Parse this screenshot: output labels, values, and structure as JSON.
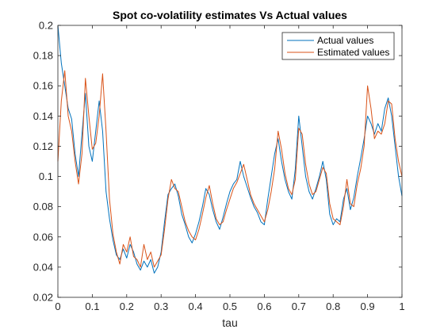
{
  "chart_data": {
    "type": "line",
    "title": "Spot co-volatility estimates Vs Actual values",
    "xlabel": "tau",
    "ylabel": "",
    "xlim": [
      0,
      1
    ],
    "ylim": [
      0.02,
      0.2
    ],
    "xticks": [
      0,
      0.1,
      0.2,
      0.3,
      0.4,
      0.5,
      0.6,
      0.7,
      0.8,
      0.9,
      1
    ],
    "xtick_labels": [
      "0",
      "0.1",
      "0.2",
      "0.3",
      "0.4",
      "0.5",
      "0.6",
      "0.7",
      "0.8",
      "0.9",
      "1"
    ],
    "yticks": [
      0.02,
      0.04,
      0.06,
      0.08,
      0.1,
      0.12,
      0.14,
      0.16,
      0.18,
      0.2
    ],
    "ytick_labels": [
      "0.02",
      "0.04",
      "0.06",
      "0.08",
      "0.1",
      "0.12",
      "0.14",
      "0.16",
      "0.18",
      "0.2"
    ],
    "grid": false,
    "legend_position": "top-right",
    "series": [
      {
        "name": "Actual values",
        "color": "#0072BD",
        "points": [
          [
            0.0,
            0.2
          ],
          [
            0.01,
            0.175
          ],
          [
            0.02,
            0.16
          ],
          [
            0.03,
            0.145
          ],
          [
            0.04,
            0.138
          ],
          [
            0.05,
            0.115
          ],
          [
            0.06,
            0.1
          ],
          [
            0.07,
            0.128
          ],
          [
            0.08,
            0.155
          ],
          [
            0.09,
            0.12
          ],
          [
            0.1,
            0.11
          ],
          [
            0.11,
            0.13
          ],
          [
            0.12,
            0.15
          ],
          [
            0.13,
            0.13
          ],
          [
            0.14,
            0.09
          ],
          [
            0.15,
            0.072
          ],
          [
            0.16,
            0.058
          ],
          [
            0.17,
            0.048
          ],
          [
            0.18,
            0.045
          ],
          [
            0.19,
            0.052
          ],
          [
            0.2,
            0.046
          ],
          [
            0.21,
            0.055
          ],
          [
            0.22,
            0.05
          ],
          [
            0.23,
            0.042
          ],
          [
            0.24,
            0.038
          ],
          [
            0.25,
            0.044
          ],
          [
            0.26,
            0.04
          ],
          [
            0.27,
            0.045
          ],
          [
            0.28,
            0.036
          ],
          [
            0.29,
            0.04
          ],
          [
            0.3,
            0.05
          ],
          [
            0.31,
            0.07
          ],
          [
            0.32,
            0.088
          ],
          [
            0.33,
            0.092
          ],
          [
            0.34,
            0.095
          ],
          [
            0.35,
            0.087
          ],
          [
            0.36,
            0.075
          ],
          [
            0.37,
            0.068
          ],
          [
            0.38,
            0.06
          ],
          [
            0.39,
            0.056
          ],
          [
            0.4,
            0.062
          ],
          [
            0.41,
            0.07
          ],
          [
            0.42,
            0.08
          ],
          [
            0.43,
            0.092
          ],
          [
            0.44,
            0.088
          ],
          [
            0.45,
            0.078
          ],
          [
            0.46,
            0.07
          ],
          [
            0.47,
            0.065
          ],
          [
            0.48,
            0.073
          ],
          [
            0.49,
            0.082
          ],
          [
            0.5,
            0.09
          ],
          [
            0.51,
            0.095
          ],
          [
            0.52,
            0.098
          ],
          [
            0.53,
            0.11
          ],
          [
            0.54,
            0.1
          ],
          [
            0.55,
            0.093
          ],
          [
            0.56,
            0.086
          ],
          [
            0.57,
            0.08
          ],
          [
            0.58,
            0.076
          ],
          [
            0.59,
            0.07
          ],
          [
            0.6,
            0.068
          ],
          [
            0.61,
            0.085
          ],
          [
            0.62,
            0.1
          ],
          [
            0.63,
            0.115
          ],
          [
            0.64,
            0.125
          ],
          [
            0.65,
            0.11
          ],
          [
            0.66,
            0.098
          ],
          [
            0.67,
            0.09
          ],
          [
            0.68,
            0.085
          ],
          [
            0.69,
            0.105
          ],
          [
            0.7,
            0.14
          ],
          [
            0.71,
            0.12
          ],
          [
            0.72,
            0.1
          ],
          [
            0.73,
            0.09
          ],
          [
            0.74,
            0.085
          ],
          [
            0.75,
            0.092
          ],
          [
            0.76,
            0.1
          ],
          [
            0.77,
            0.11
          ],
          [
            0.78,
            0.098
          ],
          [
            0.79,
            0.075
          ],
          [
            0.8,
            0.068
          ],
          [
            0.81,
            0.072
          ],
          [
            0.82,
            0.07
          ],
          [
            0.83,
            0.085
          ],
          [
            0.84,
            0.092
          ],
          [
            0.85,
            0.078
          ],
          [
            0.86,
            0.086
          ],
          [
            0.87,
            0.1
          ],
          [
            0.88,
            0.112
          ],
          [
            0.89,
            0.125
          ],
          [
            0.9,
            0.14
          ],
          [
            0.91,
            0.135
          ],
          [
            0.92,
            0.128
          ],
          [
            0.93,
            0.135
          ],
          [
            0.94,
            0.13
          ],
          [
            0.95,
            0.145
          ],
          [
            0.96,
            0.152
          ],
          [
            0.97,
            0.14
          ],
          [
            0.98,
            0.12
          ],
          [
            0.99,
            0.1
          ],
          [
            1.0,
            0.087
          ]
        ]
      },
      {
        "name": "Estimated values",
        "color": "#D95319",
        "points": [
          [
            0.0,
            0.11
          ],
          [
            0.01,
            0.15
          ],
          [
            0.02,
            0.17
          ],
          [
            0.03,
            0.14
          ],
          [
            0.04,
            0.13
          ],
          [
            0.05,
            0.11
          ],
          [
            0.06,
            0.095
          ],
          [
            0.07,
            0.115
          ],
          [
            0.08,
            0.165
          ],
          [
            0.09,
            0.14
          ],
          [
            0.1,
            0.118
          ],
          [
            0.11,
            0.122
          ],
          [
            0.12,
            0.14
          ],
          [
            0.13,
            0.168
          ],
          [
            0.14,
            0.13
          ],
          [
            0.15,
            0.085
          ],
          [
            0.16,
            0.062
          ],
          [
            0.17,
            0.05
          ],
          [
            0.18,
            0.042
          ],
          [
            0.19,
            0.055
          ],
          [
            0.2,
            0.05
          ],
          [
            0.21,
            0.06
          ],
          [
            0.22,
            0.047
          ],
          [
            0.23,
            0.045
          ],
          [
            0.24,
            0.04
          ],
          [
            0.25,
            0.055
          ],
          [
            0.26,
            0.045
          ],
          [
            0.27,
            0.05
          ],
          [
            0.28,
            0.04
          ],
          [
            0.29,
            0.044
          ],
          [
            0.3,
            0.048
          ],
          [
            0.31,
            0.065
          ],
          [
            0.32,
            0.085
          ],
          [
            0.33,
            0.098
          ],
          [
            0.34,
            0.092
          ],
          [
            0.35,
            0.09
          ],
          [
            0.36,
            0.08
          ],
          [
            0.37,
            0.07
          ],
          [
            0.38,
            0.064
          ],
          [
            0.39,
            0.06
          ],
          [
            0.4,
            0.058
          ],
          [
            0.41,
            0.065
          ],
          [
            0.42,
            0.075
          ],
          [
            0.43,
            0.086
          ],
          [
            0.44,
            0.094
          ],
          [
            0.45,
            0.082
          ],
          [
            0.46,
            0.072
          ],
          [
            0.47,
            0.068
          ],
          [
            0.48,
            0.07
          ],
          [
            0.49,
            0.078
          ],
          [
            0.5,
            0.085
          ],
          [
            0.51,
            0.092
          ],
          [
            0.52,
            0.096
          ],
          [
            0.53,
            0.102
          ],
          [
            0.54,
            0.108
          ],
          [
            0.55,
            0.098
          ],
          [
            0.56,
            0.088
          ],
          [
            0.57,
            0.082
          ],
          [
            0.58,
            0.078
          ],
          [
            0.59,
            0.074
          ],
          [
            0.6,
            0.07
          ],
          [
            0.61,
            0.078
          ],
          [
            0.62,
            0.09
          ],
          [
            0.63,
            0.105
          ],
          [
            0.64,
            0.13
          ],
          [
            0.65,
            0.118
          ],
          [
            0.66,
            0.102
          ],
          [
            0.67,
            0.092
          ],
          [
            0.68,
            0.088
          ],
          [
            0.69,
            0.098
          ],
          [
            0.7,
            0.132
          ],
          [
            0.71,
            0.128
          ],
          [
            0.72,
            0.108
          ],
          [
            0.73,
            0.095
          ],
          [
            0.74,
            0.088
          ],
          [
            0.75,
            0.09
          ],
          [
            0.76,
            0.098
          ],
          [
            0.77,
            0.106
          ],
          [
            0.78,
            0.102
          ],
          [
            0.79,
            0.082
          ],
          [
            0.8,
            0.072
          ],
          [
            0.81,
            0.07
          ],
          [
            0.82,
            0.068
          ],
          [
            0.83,
            0.08
          ],
          [
            0.84,
            0.098
          ],
          [
            0.85,
            0.082
          ],
          [
            0.86,
            0.08
          ],
          [
            0.87,
            0.095
          ],
          [
            0.88,
            0.105
          ],
          [
            0.89,
            0.12
          ],
          [
            0.9,
            0.16
          ],
          [
            0.91,
            0.145
          ],
          [
            0.92,
            0.125
          ],
          [
            0.93,
            0.13
          ],
          [
            0.94,
            0.128
          ],
          [
            0.95,
            0.135
          ],
          [
            0.96,
            0.15
          ],
          [
            0.97,
            0.148
          ],
          [
            0.98,
            0.125
          ],
          [
            0.99,
            0.11
          ],
          [
            1.0,
            0.1
          ]
        ]
      }
    ]
  }
}
